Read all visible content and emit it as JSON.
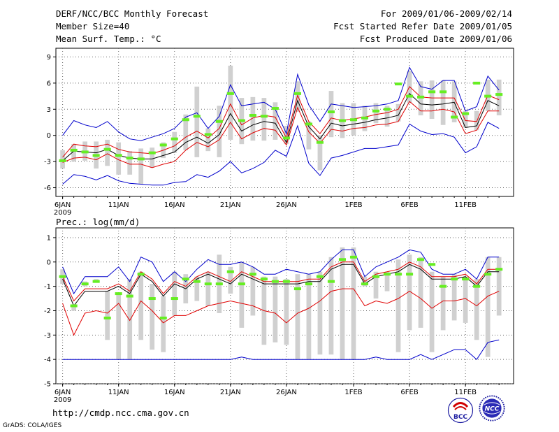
{
  "header": {
    "title": "DERF/NCC/BCC Monthly Forecast",
    "member_size": "Member Size=40",
    "variable": "Mean Surf. Temp.: °C",
    "period": "For 2009/01/06-2009/02/14",
    "start_date": "Fcst Started Refer Date 2009/01/05",
    "produced_date": "Fcst Produced Date 2009/01/06"
  },
  "footer": {
    "url": "http://cmdp.ncc.cma.gov.cn",
    "credit": "GrADS: COLA/IGES",
    "logo_left_text": "BCC",
    "logo_right_text": "NCC"
  },
  "colors": {
    "box": "#d0d0d0",
    "mean": "#000000",
    "stdband": "#e00000",
    "extreme": "#0000cc",
    "observed": "#66ee22",
    "grid": "#666666"
  },
  "chart_data": [
    {
      "type": "line",
      "title": "Mean Surf. Temp.: °C",
      "x": [
        0,
        1,
        2,
        3,
        4,
        5,
        6,
        7,
        8,
        9,
        10,
        11,
        12,
        13,
        14,
        15,
        16,
        17,
        18,
        19,
        20,
        21,
        22,
        23,
        24,
        25,
        26,
        27,
        28,
        29,
        30,
        31,
        32,
        33,
        34,
        35,
        36,
        37,
        38,
        39
      ],
      "xlim": [
        -0.6,
        40.3
      ],
      "x_ticks": [
        {
          "x": 0,
          "label": "6JAN",
          "sub": "2009"
        },
        {
          "x": 5,
          "label": "11JAN"
        },
        {
          "x": 10,
          "label": "16JAN"
        },
        {
          "x": 15,
          "label": "21JAN"
        },
        {
          "x": 20,
          "label": "26JAN"
        },
        {
          "x": 26,
          "label": "1FEB"
        },
        {
          "x": 31,
          "label": "6FEB"
        },
        {
          "x": 36,
          "label": "11FEB"
        }
      ],
      "ylim": [
        -7,
        10
      ],
      "y_ticks": [
        -6,
        -3,
        0,
        3,
        6,
        9
      ],
      "series": [
        {
          "name": "ensemble max",
          "values": [
            0,
            1.7,
            1.2,
            0.9,
            1.6,
            0.4,
            -0.4,
            -0.6,
            -0.2,
            0.2,
            0.8,
            2.1,
            2.6,
            0.8,
            2.2,
            5.8,
            3.4,
            3.6,
            3.8,
            3.0,
            0.2,
            7.0,
            3.5,
            1.6,
            3.6,
            3.4,
            3.2,
            3.3,
            3.4,
            3.6,
            4.0,
            7.8,
            5.6,
            5.3,
            6.3,
            6.3,
            2.8,
            3.3,
            6.8,
            5.2
          ]
        },
        {
          "name": "mean plus std",
          "values": [
            -2.5,
            -1.0,
            -1.2,
            -1.3,
            -1.0,
            -1.6,
            -1.9,
            -2.0,
            -2.1,
            -1.7,
            -1.2,
            -0.2,
            0.5,
            -0.3,
            0.8,
            3.6,
            1.2,
            2.0,
            2.3,
            2.1,
            -0.3,
            4.6,
            1.6,
            0.2,
            2.0,
            1.7,
            1.9,
            2.1,
            2.4,
            2.6,
            3.0,
            5.6,
            4.4,
            4.3,
            4.3,
            4.3,
            1.7,
            1.6,
            4.6,
            4.1
          ]
        },
        {
          "name": "ensemble mean",
          "values": [
            -2.9,
            -1.8,
            -1.9,
            -2.0,
            -1.6,
            -2.3,
            -2.6,
            -2.7,
            -2.7,
            -2.3,
            -1.9,
            -0.8,
            -0.2,
            -0.9,
            0.1,
            2.5,
            0.5,
            1.2,
            1.6,
            1.4,
            -0.8,
            4.0,
            1.0,
            -0.4,
            1.4,
            1.1,
            1.3,
            1.5,
            1.8,
            2.0,
            2.3,
            4.8,
            3.6,
            3.5,
            3.6,
            3.8,
            0.9,
            1.1,
            4.0,
            3.4
          ]
        },
        {
          "name": "mean minus std",
          "values": [
            -3.1,
            -2.6,
            -2.5,
            -2.8,
            -2.1,
            -2.8,
            -3.3,
            -3.3,
            -3.7,
            -3.3,
            -3.0,
            -1.7,
            -0.8,
            -1.3,
            -0.5,
            1.5,
            -0.4,
            0.3,
            0.8,
            0.6,
            -1.1,
            3.2,
            0.4,
            -0.9,
            0.7,
            0.5,
            0.8,
            0.9,
            1.2,
            1.3,
            1.6,
            3.9,
            2.8,
            2.8,
            3.0,
            2.7,
            0.2,
            0.6,
            2.8,
            2.8
          ]
        },
        {
          "name": "ensemble min",
          "values": [
            -5.6,
            -4.5,
            -4.7,
            -5.1,
            -4.6,
            -5.2,
            -5.5,
            -5.6,
            -5.7,
            -5.7,
            -5.4,
            -5.3,
            -4.5,
            -4.8,
            -4.1,
            -3.0,
            -4.3,
            -3.8,
            -3.1,
            -1.7,
            -2.4,
            1.1,
            -3.2,
            -4.6,
            -2.6,
            -2.3,
            -1.9,
            -1.5,
            -1.5,
            -1.3,
            -1.1,
            1.3,
            0.5,
            0.1,
            0.2,
            -0.2,
            -2.0,
            -1.3,
            1.5,
            0.8
          ]
        }
      ],
      "boxes": {
        "low": [
          -3.8,
          -3.0,
          -2.9,
          -3.8,
          -3.5,
          -4.5,
          -4.5,
          -5.6,
          -3.7,
          -2.6,
          -2.0,
          -1.7,
          -2.5,
          -1.8,
          -2.5,
          -0.5,
          -1.0,
          -0.6,
          -0.6,
          -0.5,
          -1.0,
          2.7,
          -1.6,
          -4.0,
          -0.2,
          -0.3,
          0.0,
          0.5,
          1.4,
          1.0,
          1.6,
          3.7,
          2.3,
          1.9,
          1.2,
          1.5,
          0.9,
          0.6,
          2.8,
          2.3
        ],
        "high": [
          -1.7,
          -1.0,
          -0.7,
          -0.7,
          -0.5,
          -0.8,
          -1.8,
          -1.5,
          -1.4,
          -0.8,
          0.4,
          2.4,
          5.6,
          0.8,
          3.4,
          8.0,
          4.3,
          4.4,
          4.3,
          3.8,
          1.1,
          6.2,
          1.6,
          0.0,
          5.1,
          3.7,
          3.7,
          3.4,
          3.7,
          3.4,
          3.6,
          7.4,
          6.2,
          6.3,
          6.3,
          6.2,
          2.8,
          2.8,
          6.4,
          6.4
        ]
      },
      "observed": [
        -2.9,
        -1.7,
        -1.9,
        -2.3,
        -1.6,
        -2.3,
        -2.6,
        -2.7,
        -2.0,
        -1.1,
        -0.4,
        1.8,
        2.2,
        0.1,
        1.6,
        4.8,
        1.7,
        2.3,
        2.2,
        3.1,
        -0.3,
        4.8,
        1.3,
        -0.8,
        2.7,
        1.7,
        1.8,
        2.0,
        2.8,
        3.0,
        5.9,
        4.5,
        4.4,
        5.0,
        5.0,
        2.1,
        2.5,
        6.0,
        4.5,
        4.7
      ]
    },
    {
      "type": "line",
      "title": "Prec.: log(mm/d)",
      "x": [
        0,
        1,
        2,
        3,
        4,
        5,
        6,
        7,
        8,
        9,
        10,
        11,
        12,
        13,
        14,
        15,
        16,
        17,
        18,
        19,
        20,
        21,
        22,
        23,
        24,
        25,
        26,
        27,
        28,
        29,
        30,
        31,
        32,
        33,
        34,
        35,
        36,
        37,
        38,
        39
      ],
      "xlim": [
        -0.6,
        40.3
      ],
      "x_ticks": [
        {
          "x": 0,
          "label": "6JAN",
          "sub": "2009"
        },
        {
          "x": 5,
          "label": "11JAN"
        },
        {
          "x": 10,
          "label": "16JAN"
        },
        {
          "x": 15,
          "label": "21JAN"
        },
        {
          "x": 20,
          "label": "26JAN"
        },
        {
          "x": 26,
          "label": "1FEB"
        },
        {
          "x": 31,
          "label": "6FEB"
        },
        {
          "x": 36,
          "label": "11FEB"
        }
      ],
      "ylim": [
        -5,
        1.4
      ],
      "y_ticks": [
        -5,
        -4,
        -3,
        -2,
        -1,
        0,
        1
      ],
      "series": [
        {
          "name": "ensemble max",
          "values": [
            -0.2,
            -1.3,
            -0.6,
            -0.6,
            -0.6,
            -0.2,
            -0.8,
            0.2,
            0.0,
            -0.8,
            -0.4,
            -0.8,
            -0.3,
            0.1,
            -0.1,
            -0.1,
            0.0,
            -0.2,
            -0.5,
            -0.5,
            -0.3,
            -0.4,
            -0.5,
            -0.4,
            0.1,
            0.5,
            0.5,
            -0.6,
            -0.2,
            0.0,
            0.2,
            0.5,
            0.4,
            -0.3,
            -0.5,
            -0.5,
            -0.3,
            -0.7,
            0.2,
            0.2
          ]
        },
        {
          "name": "mean plus std",
          "values": [
            -0.6,
            -1.6,
            -1.1,
            -1.1,
            -1.1,
            -0.9,
            -1.2,
            -0.4,
            -0.7,
            -1.3,
            -0.8,
            -1.0,
            -0.6,
            -0.4,
            -0.6,
            -0.8,
            -0.4,
            -0.6,
            -0.8,
            -0.8,
            -0.8,
            -0.8,
            -0.7,
            -0.7,
            -0.2,
            0.0,
            0.0,
            -0.8,
            -0.5,
            -0.4,
            -0.3,
            0.0,
            -0.2,
            -0.6,
            -0.6,
            -0.6,
            -0.5,
            -0.9,
            -0.3,
            -0.3
          ]
        },
        {
          "name": "ensemble mean",
          "values": [
            -0.7,
            -1.8,
            -1.2,
            -1.2,
            -1.2,
            -1.0,
            -1.3,
            -0.5,
            -0.8,
            -1.4,
            -0.9,
            -1.1,
            -0.7,
            -0.5,
            -0.7,
            -0.9,
            -0.5,
            -0.7,
            -0.9,
            -0.9,
            -0.9,
            -0.9,
            -0.8,
            -0.8,
            -0.3,
            -0.1,
            -0.1,
            -0.9,
            -0.6,
            -0.5,
            -0.4,
            -0.1,
            -0.3,
            -0.7,
            -0.7,
            -0.7,
            -0.6,
            -1.0,
            -0.4,
            -0.4
          ]
        },
        {
          "name": "mean minus std",
          "values": [
            -1.7,
            -3.0,
            -2.1,
            -2.0,
            -2.1,
            -1.7,
            -2.4,
            -1.6,
            -2.0,
            -2.5,
            -2.2,
            -2.2,
            -2.0,
            -1.8,
            -1.7,
            -1.6,
            -1.7,
            -1.8,
            -2.0,
            -2.1,
            -2.5,
            -2.1,
            -1.9,
            -1.6,
            -1.2,
            -1.1,
            -1.1,
            -1.8,
            -1.6,
            -1.7,
            -1.5,
            -1.2,
            -1.5,
            -1.9,
            -1.6,
            -1.6,
            -1.5,
            -1.8,
            -1.4,
            -1.2
          ]
        },
        {
          "name": "ensemble min",
          "values": [
            -4.0,
            -4.0,
            -4.0,
            -4.0,
            -4.0,
            -4.0,
            -4.0,
            -4.0,
            -4.0,
            -4.0,
            -4.0,
            -4.0,
            -4.0,
            -4.0,
            -4.0,
            -4.0,
            -3.9,
            -4.0,
            -4.0,
            -4.0,
            -4.0,
            -4.0,
            -4.0,
            -4.0,
            -4.0,
            -4.0,
            -4.0,
            -4.0,
            -3.9,
            -4.0,
            -4.0,
            -4.0,
            -3.8,
            -4.0,
            -3.8,
            -3.6,
            -3.6,
            -4.0,
            -3.3,
            -3.2
          ]
        }
      ],
      "boxes": {
        "low": [
          -0.9,
          -2.0,
          -1.0,
          -0.8,
          -3.2,
          -4.0,
          -4.0,
          -3.2,
          -3.6,
          -3.7,
          -2.2,
          -1.7,
          -1.6,
          -1.8,
          -2.1,
          -1.3,
          -2.7,
          -2.2,
          -3.4,
          -3.3,
          -3.4,
          -4.0,
          -4.0,
          -3.8,
          -3.8,
          -4.0,
          -4.0,
          -1.0,
          -1.5,
          -1.2,
          -3.7,
          -2.8,
          -2.7,
          -3.7,
          -2.8,
          -2.4,
          -2.5,
          -3.2,
          -3.9,
          -2.2
        ],
        "high": [
          -0.3,
          -1.8,
          -0.8,
          -0.7,
          -1.2,
          -1.3,
          -0.7,
          -0.4,
          -0.9,
          -1.4,
          -0.4,
          -0.5,
          -0.6,
          -0.4,
          0.3,
          -0.2,
          0.0,
          -0.2,
          -0.6,
          -0.6,
          -0.7,
          -0.5,
          -0.5,
          -0.4,
          0.2,
          0.6,
          0.6,
          -0.6,
          -0.4,
          -0.4,
          0.1,
          0.3,
          0.2,
          -0.4,
          -0.6,
          -0.5,
          -0.6,
          -0.7,
          0.2,
          0.2
        ]
      },
      "observed": [
        -0.6,
        -1.8,
        -0.9,
        -0.8,
        -2.3,
        -1.3,
        -1.4,
        -0.5,
        -1.5,
        -2.3,
        -1.5,
        -0.7,
        -0.8,
        -0.9,
        -0.9,
        -0.4,
        -0.9,
        -0.5,
        -0.7,
        -0.8,
        -0.8,
        -1.1,
        -0.9,
        -0.6,
        -0.8,
        0.1,
        0.2,
        -0.9,
        -0.6,
        -0.5,
        -0.5,
        -0.5,
        0.1,
        -0.1,
        -1.0,
        -0.7,
        -0.7,
        -1.0,
        -0.5,
        -0.3
      ]
    }
  ]
}
